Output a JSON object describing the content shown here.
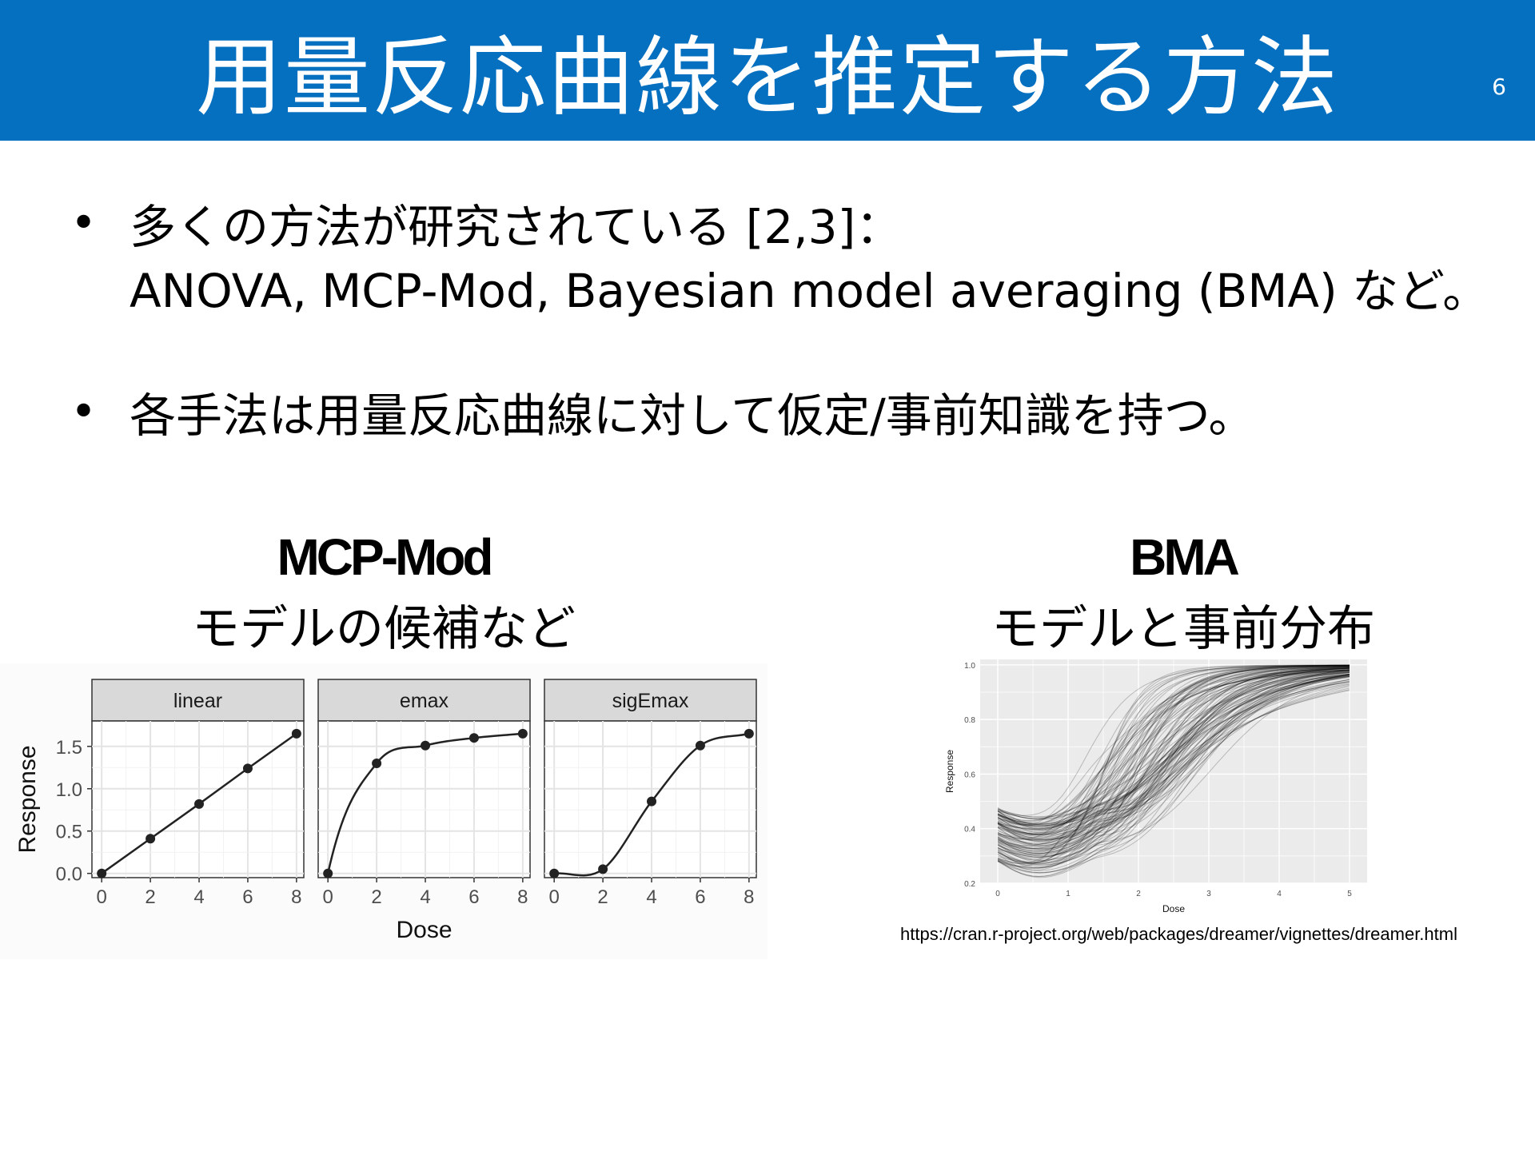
{
  "slide": {
    "title": "用量反応曲線を推定する方法",
    "page_number": "6",
    "title_bar_color": "#0570C0"
  },
  "bullets": [
    {
      "symbol": "•",
      "line1": "多くの方法が研究されている [2,3]：",
      "line2": "ANOVA, MCP-Mod, Bayesian model averaging (BMA) など。"
    },
    {
      "symbol": "•",
      "line1": "各手法は用量反応曲線に対して仮定/事前知識を持つ。"
    }
  ],
  "left_panel": {
    "heading": "MCP-Mod",
    "subheading": "モデルの候補など"
  },
  "right_panel": {
    "heading": "BMA",
    "subheading": "モデルと事前分布",
    "source_url": "https://cran.r-project.org/web/packages/dreamer/vignettes/dreamer.html"
  },
  "chart_data": [
    {
      "type": "line",
      "title": "",
      "xlabel": "Dose",
      "ylabel": "Response",
      "xlim": [
        -0.4,
        8.3
      ],
      "ylim": [
        -0.05,
        1.8
      ],
      "x_ticks": [
        "0",
        "2",
        "4",
        "6",
        "8"
      ],
      "y_ticks": [
        "0.0",
        "0.5",
        "1.0",
        "1.5"
      ],
      "facets": [
        {
          "name": "linear",
          "points": [
            [
              0,
              0.0
            ],
            [
              2,
              0.41
            ],
            [
              4,
              0.82
            ],
            [
              6,
              1.24
            ],
            [
              8,
              1.65
            ]
          ]
        },
        {
          "name": "emax",
          "points": [
            [
              0,
              0.0
            ],
            [
              2,
              1.3
            ],
            [
              4,
              1.51
            ],
            [
              6,
              1.6
            ],
            [
              8,
              1.65
            ]
          ]
        },
        {
          "name": "sigEmax",
          "points": [
            [
              0,
              0.0
            ],
            [
              2,
              0.05
            ],
            [
              4,
              0.85
            ],
            [
              6,
              1.51
            ],
            [
              8,
              1.65
            ]
          ]
        }
      ]
    },
    {
      "type": "line",
      "title": "",
      "xlabel": "Dose",
      "ylabel": "Response",
      "xlim": [
        -0.25,
        5.25
      ],
      "ylim": [
        0.2,
        1.02
      ],
      "x_ticks": [
        "0",
        "1",
        "2",
        "3",
        "4",
        "5"
      ],
      "y_ticks": [
        "0.2",
        "0.4",
        "0.6",
        "0.8",
        "1.0"
      ],
      "curve_family": "sigmoid emax prior draws",
      "n_curves_approx": 120
    }
  ]
}
